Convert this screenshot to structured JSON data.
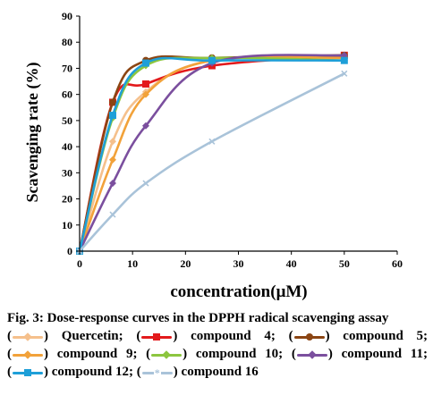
{
  "chart_data": {
    "type": "line",
    "title": "",
    "xlabel": "concentration(μM)",
    "ylabel": "Scavenging rate (%)",
    "xlim": [
      0,
      60
    ],
    "ylim": [
      0,
      90
    ],
    "x_ticks": [
      "0",
      "10",
      "20",
      "30",
      "40",
      "50",
      "60"
    ],
    "y_ticks": [
      "0",
      "10",
      "20",
      "30",
      "40",
      "50",
      "60",
      "70",
      "80",
      "90"
    ],
    "grid": false,
    "x": [
      0,
      6.25,
      12.5,
      25,
      50
    ],
    "series": [
      {
        "name": "Quercetin",
        "color": "#F5C08C",
        "marker": "diamond",
        "values": [
          0,
          42,
          61,
          73,
          74
        ]
      },
      {
        "name": "compound 4",
        "color": "#E31A1C",
        "marker": "square",
        "values": [
          0,
          57,
          64,
          71,
          75
        ]
      },
      {
        "name": "compound 5",
        "color": "#8B4513",
        "marker": "circle",
        "values": [
          0,
          57,
          73,
          74,
          75
        ]
      },
      {
        "name": "compound 9",
        "color": "#F2A23A",
        "marker": "diamond",
        "values": [
          0,
          35,
          60,
          73,
          74
        ]
      },
      {
        "name": "compound 10",
        "color": "#8CC63F",
        "marker": "diamond",
        "values": [
          0,
          51,
          71,
          74,
          73
        ]
      },
      {
        "name": "compound 11",
        "color": "#7B4F9E",
        "marker": "diamond",
        "values": [
          0,
          26,
          48,
          72,
          75
        ]
      },
      {
        "name": "compound 12",
        "color": "#1E9FD8",
        "marker": "square",
        "values": [
          0,
          52,
          72,
          73,
          73
        ]
      },
      {
        "name": "compound 16",
        "color": "#A9C3D9",
        "marker": "x",
        "values": [
          0,
          14,
          26,
          42,
          68
        ]
      }
    ]
  },
  "caption": {
    "fig_label": "Fig. 3:",
    "title_text": "Dose-response curves in the DPPH radical scavenging assay",
    "legend": [
      {
        "close": ")",
        "name": "Quercetin;"
      },
      {
        "close": ")",
        "name": "compound 4;"
      },
      {
        "close": ")",
        "name": "compound 5;"
      },
      {
        "close": ")",
        "name": "compound 9;"
      },
      {
        "close": ")",
        "name": "compound 10;"
      },
      {
        "close": ")",
        "name": "compound 11;"
      },
      {
        "close": ")",
        "name": "compound 12;"
      },
      {
        "close": ")",
        "name": "compound 16"
      }
    ]
  }
}
